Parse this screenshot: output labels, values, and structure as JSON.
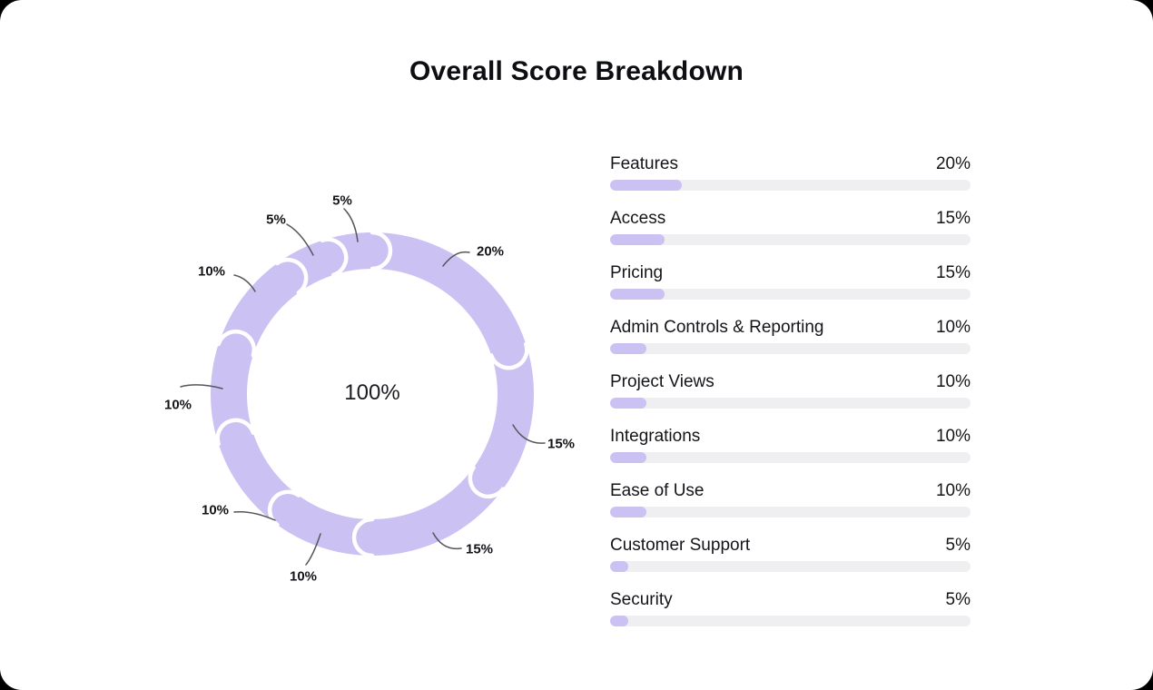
{
  "page": {
    "title": "Overall Score Breakdown",
    "background_color": "#ffffff",
    "accent_color": "#cbc1f3",
    "bar_track_color": "#efeff1",
    "divider_color": "#ffffff",
    "leader_line_color": "#55565b"
  },
  "chart_data": {
    "type": "pie",
    "donut": true,
    "title": "Overall Score Breakdown",
    "center_label": "100%",
    "unit": "%",
    "direction": "clockwise",
    "start_angle_deg": 0,
    "segment_color": "#cbc1f3",
    "categories": [
      "Features",
      "Access",
      "Pricing",
      "Admin Controls & Reporting",
      "Project Views",
      "Integrations",
      "Ease of Use",
      "Customer Support",
      "Security"
    ],
    "values": [
      20,
      15,
      15,
      10,
      10,
      10,
      10,
      5,
      5
    ],
    "slice_labels": [
      "20%",
      "15%",
      "15%",
      "10%",
      "10%",
      "10%",
      "10%",
      "5%",
      "5%"
    ],
    "total": "100%"
  },
  "legend": {
    "rows": [
      {
        "label": "Features",
        "value": "20%",
        "fill": "20%"
      },
      {
        "label": "Access",
        "value": "15%",
        "fill": "15%"
      },
      {
        "label": "Pricing",
        "value": "15%",
        "fill": "15%"
      },
      {
        "label": "Admin Controls & Reporting",
        "value": "10%",
        "fill": "10%"
      },
      {
        "label": "Project Views",
        "value": "10%",
        "fill": "10%"
      },
      {
        "label": "Integrations",
        "value": "10%",
        "fill": "10%"
      },
      {
        "label": "Ease of Use",
        "value": "10%",
        "fill": "10%"
      },
      {
        "label": "Customer Support",
        "value": "5%",
        "fill": "5%"
      },
      {
        "label": "Security",
        "value": "5%",
        "fill": "5%"
      }
    ]
  }
}
